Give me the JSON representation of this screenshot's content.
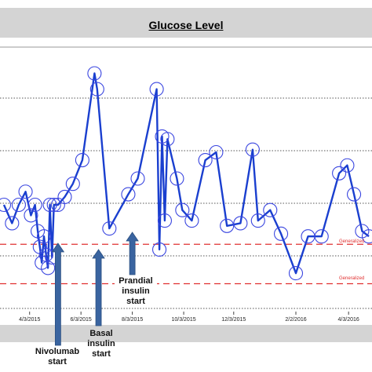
{
  "chart_data": {
    "type": "line",
    "title": "Glucose Level",
    "xlabel": "",
    "ylabel": "",
    "x_tick_labels": [
      "4/3/2015",
      "6/3/2015",
      "8/3/2015",
      "10/3/2015",
      "12/3/2015",
      "2/2/2016",
      "4/3/2016"
    ],
    "ylim": [
      0,
      100
    ],
    "grid": "horizontal dotted",
    "series": [
      {
        "color": "#1a3fcf",
        "marker": "open-circle",
        "points": [
          {
            "x": 0.0,
            "y": 40
          },
          {
            "x": 3.0,
            "y": 33
          },
          {
            "x": 5.5,
            "y": 40
          },
          {
            "x": 8.0,
            "y": 45
          },
          {
            "x": 10.0,
            "y": 36
          },
          {
            "x": 11.5,
            "y": 40
          },
          {
            "x": 12.5,
            "y": 30
          },
          {
            "x": 13.3,
            "y": 24
          },
          {
            "x": 14.0,
            "y": 18
          },
          {
            "x": 14.8,
            "y": 28
          },
          {
            "x": 15.6,
            "y": 21
          },
          {
            "x": 16.3,
            "y": 16
          },
          {
            "x": 17.0,
            "y": 40
          },
          {
            "x": 17.8,
            "y": 20
          },
          {
            "x": 18.5,
            "y": 40
          },
          {
            "x": 20.0,
            "y": 40
          },
          {
            "x": 22.5,
            "y": 43
          },
          {
            "x": 25.5,
            "y": 48
          },
          {
            "x": 29.0,
            "y": 57
          },
          {
            "x": 33.5,
            "y": 90
          },
          {
            "x": 34.5,
            "y": 84
          },
          {
            "x": 39.0,
            "y": 31
          },
          {
            "x": 46.0,
            "y": 44
          },
          {
            "x": 49.5,
            "y": 50
          },
          {
            "x": 56.5,
            "y": 84
          },
          {
            "x": 57.5,
            "y": 23
          },
          {
            "x": 58.5,
            "y": 66
          },
          {
            "x": 59.5,
            "y": 34
          },
          {
            "x": 60.5,
            "y": 65
          },
          {
            "x": 64.0,
            "y": 50
          },
          {
            "x": 66.0,
            "y": 38
          },
          {
            "x": 69.5,
            "y": 34
          },
          {
            "x": 74.5,
            "y": 57
          },
          {
            "x": 78.5,
            "y": 60
          },
          {
            "x": 82.5,
            "y": 32
          },
          {
            "x": 87.5,
            "y": 33
          },
          {
            "x": 92.0,
            "y": 61
          },
          {
            "x": 94.0,
            "y": 34
          },
          {
            "x": 98.5,
            "y": 38
          },
          {
            "x": 102.5,
            "y": 29
          },
          {
            "x": 108.0,
            "y": 14
          },
          {
            "x": 112.5,
            "y": 28
          },
          {
            "x": 117.5,
            "y": 28
          },
          {
            "x": 124.0,
            "y": 52
          },
          {
            "x": 127.0,
            "y": 55
          },
          {
            "x": 129.5,
            "y": 44
          },
          {
            "x": 132.5,
            "y": 30
          },
          {
            "x": 135.0,
            "y": 28
          }
        ]
      }
    ],
    "reference_lines": [
      {
        "y": 25,
        "color": "#e03030",
        "style": "dashed",
        "label": "Generalized"
      },
      {
        "y": 10,
        "color": "#e03030",
        "style": "dashed",
        "label": "Generalized"
      }
    ],
    "annotations": [
      {
        "text_lines": [
          "Nivolumab",
          "start"
        ],
        "x": 20.0,
        "arrow_color": "#3a64a0"
      },
      {
        "text_lines": [
          "Basal insulin",
          "start"
        ],
        "x": 35.0,
        "arrow_color": "#3a64a0"
      },
      {
        "text_lines": [
          "Prandial",
          "insulin",
          "start"
        ],
        "x": 47.5,
        "arrow_color": "#3a64a0"
      }
    ],
    "x_tick_positions": [
      9.5,
      28.5,
      47.5,
      66.5,
      85.0,
      108.0,
      127.5
    ]
  }
}
